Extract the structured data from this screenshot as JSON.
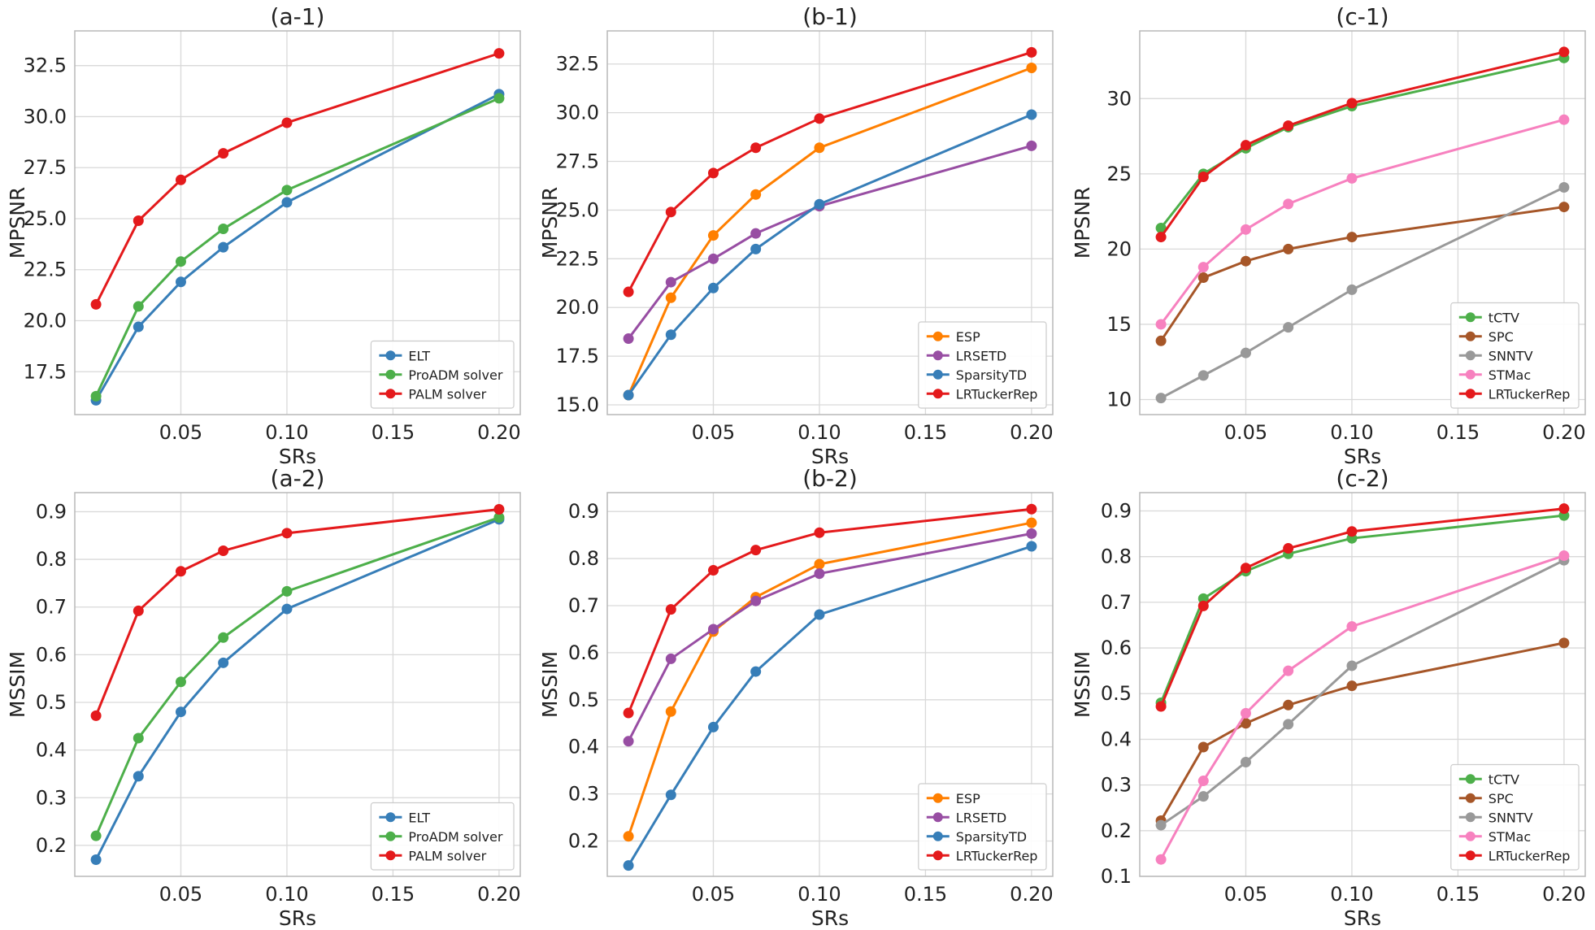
{
  "colors": {
    "ELT": "#377eb8",
    "ProADM solver": "#4daf4a",
    "PALM solver": "#e41a1c",
    "ESP": "#ff7f00",
    "LRSETD": "#984ea3",
    "SparsityTD": "#377eb8",
    "LRTuckerRep": "#e41a1c",
    "tCTV": "#4daf4a",
    "SPC": "#a65628",
    "SNNTV": "#999999",
    "STMac": "#f781bf"
  },
  "chart_data": [
    {
      "type": "line",
      "title": "(a-1)",
      "xlabel": "SRs",
      "ylabel": "MPSNR",
      "xlim": [
        0,
        0.21
      ],
      "ylim": [
        15.4,
        34.2
      ],
      "xticks": [
        0.05,
        0.1,
        0.15,
        0.2
      ],
      "xtick_labels": [
        "0.05",
        "0.10",
        "0.15",
        "0.20"
      ],
      "yticks": [
        17.5,
        20.0,
        22.5,
        25.0,
        27.5,
        30.0,
        32.5
      ],
      "ytick_labels": [
        "17.5",
        "20.0",
        "22.5",
        "25.0",
        "27.5",
        "30.0",
        "32.5"
      ],
      "x": [
        0.01,
        0.03,
        0.05,
        0.07,
        0.1,
        0.2
      ],
      "legend_position": "lower-right",
      "series": [
        {
          "name": "ELT",
          "values": [
            16.1,
            19.7,
            21.9,
            23.6,
            25.8,
            31.1
          ]
        },
        {
          "name": "ProADM solver",
          "values": [
            16.3,
            20.7,
            22.9,
            24.5,
            26.4,
            30.9
          ]
        },
        {
          "name": "PALM solver",
          "values": [
            20.8,
            24.9,
            26.9,
            28.2,
            29.7,
            33.1
          ]
        }
      ]
    },
    {
      "type": "line",
      "title": "(b-1)",
      "xlabel": "SRs",
      "ylabel": "MPSNR",
      "xlim": [
        0,
        0.21
      ],
      "ylim": [
        14.5,
        34.2
      ],
      "xticks": [
        0.05,
        0.1,
        0.15,
        0.2
      ],
      "xtick_labels": [
        "0.05",
        "0.10",
        "0.15",
        "0.20"
      ],
      "yticks": [
        15.0,
        17.5,
        20.0,
        22.5,
        25.0,
        27.5,
        30.0,
        32.5
      ],
      "ytick_labels": [
        "15.0",
        "17.5",
        "20.0",
        "22.5",
        "25.0",
        "27.5",
        "30.0",
        "32.5"
      ],
      "x": [
        0.01,
        0.03,
        0.05,
        0.07,
        0.1,
        0.2
      ],
      "legend_position": "lower-right",
      "series": [
        {
          "name": "ESP",
          "values": [
            15.5,
            20.5,
            23.7,
            25.8,
            28.2,
            32.3
          ]
        },
        {
          "name": "LRSETD",
          "values": [
            18.4,
            21.3,
            22.5,
            23.8,
            25.2,
            28.3
          ]
        },
        {
          "name": "SparsityTD",
          "values": [
            15.5,
            18.6,
            21.0,
            23.0,
            25.3,
            29.9
          ]
        },
        {
          "name": "LRTuckerRep",
          "values": [
            20.8,
            24.9,
            26.9,
            28.2,
            29.7,
            33.1
          ]
        }
      ]
    },
    {
      "type": "line",
      "title": "(c-1)",
      "xlabel": "SRs",
      "ylabel": "MPSNR",
      "xlim": [
        0,
        0.21
      ],
      "ylim": [
        9.0,
        34.5
      ],
      "xticks": [
        0.05,
        0.1,
        0.15,
        0.2
      ],
      "xtick_labels": [
        "0.05",
        "0.10",
        "0.15",
        "0.20"
      ],
      "yticks": [
        10,
        15,
        20,
        25,
        30
      ],
      "ytick_labels": [
        "10",
        "15",
        "20",
        "25",
        "30"
      ],
      "x": [
        0.01,
        0.03,
        0.05,
        0.07,
        0.1,
        0.2
      ],
      "legend_position": "lower-right",
      "series": [
        {
          "name": "tCTV",
          "values": [
            21.4,
            25.0,
            26.7,
            28.1,
            29.5,
            32.7
          ]
        },
        {
          "name": "SPC",
          "values": [
            13.9,
            18.1,
            19.2,
            20.0,
            20.8,
            22.8
          ]
        },
        {
          "name": "SNNTV",
          "values": [
            10.1,
            11.6,
            13.1,
            14.8,
            17.3,
            24.1
          ]
        },
        {
          "name": "STMac",
          "values": [
            15.0,
            18.8,
            21.3,
            23.0,
            24.7,
            28.6
          ]
        },
        {
          "name": "LRTuckerRep",
          "values": [
            20.8,
            24.8,
            26.9,
            28.2,
            29.7,
            33.1
          ]
        }
      ]
    },
    {
      "type": "line",
      "title": "(a-2)",
      "xlabel": "SRs",
      "ylabel": "MSSIM",
      "xlim": [
        0,
        0.21
      ],
      "ylim": [
        0.135,
        0.94
      ],
      "xticks": [
        0.05,
        0.1,
        0.15,
        0.2
      ],
      "xtick_labels": [
        "0.05",
        "0.10",
        "0.15",
        "0.20"
      ],
      "yticks": [
        0.2,
        0.3,
        0.4,
        0.5,
        0.6,
        0.7,
        0.8,
        0.9
      ],
      "ytick_labels": [
        "0.2",
        "0.3",
        "0.4",
        "0.5",
        "0.6",
        "0.7",
        "0.8",
        "0.9"
      ],
      "x": [
        0.01,
        0.03,
        0.05,
        0.07,
        0.1,
        0.2
      ],
      "legend_position": "lower-right",
      "series": [
        {
          "name": "ELT",
          "values": [
            0.17,
            0.345,
            0.48,
            0.583,
            0.696,
            0.884
          ]
        },
        {
          "name": "ProADM solver",
          "values": [
            0.22,
            0.425,
            0.543,
            0.636,
            0.733,
            0.888
          ]
        },
        {
          "name": "PALM solver",
          "values": [
            0.472,
            0.692,
            0.775,
            0.818,
            0.855,
            0.905
          ]
        }
      ]
    },
    {
      "type": "line",
      "title": "(b-2)",
      "xlabel": "SRs",
      "ylabel": "MSSIM",
      "xlim": [
        0,
        0.21
      ],
      "ylim": [
        0.125,
        0.94
      ],
      "xticks": [
        0.05,
        0.1,
        0.15,
        0.2
      ],
      "xtick_labels": [
        "0.05",
        "0.10",
        "0.15",
        "0.20"
      ],
      "yticks": [
        0.2,
        0.3,
        0.4,
        0.5,
        0.6,
        0.7,
        0.8,
        0.9
      ],
      "ytick_labels": [
        "0.2",
        "0.3",
        "0.4",
        "0.5",
        "0.6",
        "0.7",
        "0.8",
        "0.9"
      ],
      "x": [
        0.01,
        0.03,
        0.05,
        0.07,
        0.1,
        0.2
      ],
      "legend_position": "lower-right",
      "series": [
        {
          "name": "ESP",
          "values": [
            0.21,
            0.475,
            0.645,
            0.718,
            0.788,
            0.876
          ]
        },
        {
          "name": "LRSETD",
          "values": [
            0.412,
            0.587,
            0.65,
            0.71,
            0.768,
            0.853
          ]
        },
        {
          "name": "SparsityTD",
          "values": [
            0.148,
            0.298,
            0.442,
            0.56,
            0.681,
            0.826
          ]
        },
        {
          "name": "LRTuckerRep",
          "values": [
            0.472,
            0.692,
            0.775,
            0.818,
            0.855,
            0.905
          ]
        }
      ]
    },
    {
      "type": "line",
      "title": "(c-2)",
      "xlabel": "SRs",
      "ylabel": "MSSIM",
      "xlim": [
        0,
        0.21
      ],
      "ylim": [
        0.1,
        0.94
      ],
      "xticks": [
        0.05,
        0.1,
        0.15,
        0.2
      ],
      "xtick_labels": [
        "0.05",
        "0.10",
        "0.15",
        "0.20"
      ],
      "yticks": [
        0.1,
        0.2,
        0.3,
        0.4,
        0.5,
        0.6,
        0.7,
        0.8,
        0.9
      ],
      "ytick_labels": [
        "0.1",
        "0.2",
        "0.3",
        "0.4",
        "0.5",
        "0.6",
        "0.7",
        "0.8",
        "0.9"
      ],
      "x": [
        0.01,
        0.03,
        0.05,
        0.07,
        0.1,
        0.2
      ],
      "legend_position": "lower-right",
      "series": [
        {
          "name": "tCTV",
          "values": [
            0.48,
            0.708,
            0.768,
            0.806,
            0.84,
            0.89
          ]
        },
        {
          "name": "SPC",
          "values": [
            0.222,
            0.383,
            0.435,
            0.475,
            0.517,
            0.611
          ]
        },
        {
          "name": "SNNTV",
          "values": [
            0.212,
            0.275,
            0.35,
            0.433,
            0.561,
            0.792
          ]
        },
        {
          "name": "STMac",
          "values": [
            0.137,
            0.309,
            0.457,
            0.55,
            0.647,
            0.802
          ]
        },
        {
          "name": "LRTuckerRep",
          "values": [
            0.472,
            0.692,
            0.775,
            0.818,
            0.855,
            0.905
          ]
        }
      ]
    }
  ]
}
